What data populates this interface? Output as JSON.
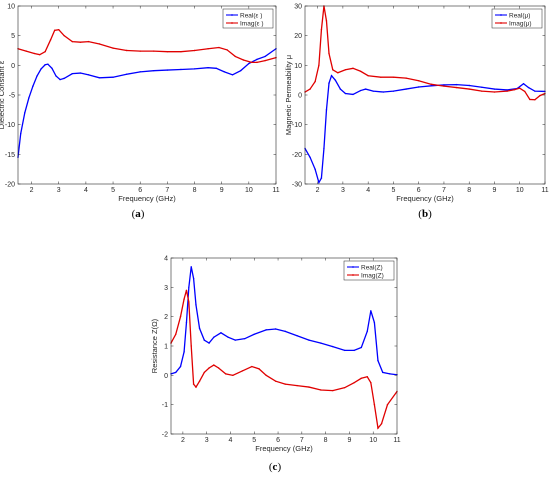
{
  "colors": {
    "real": "#0000ff",
    "imag": "#e00000"
  },
  "chart_data": [
    {
      "type": "line",
      "panel_label": "a",
      "xlabel": "Frequency (GHz)",
      "ylabel": "Dielectric Constant ε",
      "xlim": [
        1.5,
        11
      ],
      "ylim": [
        -20,
        10
      ],
      "xticks": [
        2,
        3,
        4,
        5,
        6,
        7,
        8,
        9,
        10,
        11
      ],
      "yticks": [
        -20,
        -15,
        -10,
        -5,
        0,
        5,
        10
      ],
      "grid": false,
      "legend": "top-right",
      "series": [
        {
          "name": "Real(ε )",
          "color": "#0000ff",
          "points": [
            [
              1.5,
              -15.5
            ],
            [
              1.6,
              -11.5
            ],
            [
              1.75,
              -8
            ],
            [
              1.9,
              -5.5
            ],
            [
              2.05,
              -3.5
            ],
            [
              2.2,
              -1.8
            ],
            [
              2.35,
              -0.6
            ],
            [
              2.5,
              0.1
            ],
            [
              2.6,
              0.2
            ],
            [
              2.75,
              -0.5
            ],
            [
              2.9,
              -1.8
            ],
            [
              3.05,
              -2.4
            ],
            [
              3.2,
              -2.2
            ],
            [
              3.5,
              -1.4
            ],
            [
              3.8,
              -1.3
            ],
            [
              4.1,
              -1.6
            ],
            [
              4.5,
              -2.1
            ],
            [
              5.0,
              -2.0
            ],
            [
              5.5,
              -1.5
            ],
            [
              6.0,
              -1.1
            ],
            [
              6.5,
              -0.9
            ],
            [
              7.0,
              -0.8
            ],
            [
              7.5,
              -0.7
            ],
            [
              8.0,
              -0.6
            ],
            [
              8.5,
              -0.4
            ],
            [
              8.8,
              -0.5
            ],
            [
              9.1,
              -1.1
            ],
            [
              9.4,
              -1.6
            ],
            [
              9.7,
              -0.9
            ],
            [
              10.0,
              0.3
            ],
            [
              10.3,
              1.0
            ],
            [
              10.6,
              1.5
            ],
            [
              11.0,
              2.8
            ]
          ]
        },
        {
          "name": "Imag(ε )",
          "color": "#e00000",
          "points": [
            [
              1.5,
              2.8
            ],
            [
              1.8,
              2.4
            ],
            [
              2.1,
              2.0
            ],
            [
              2.3,
              1.8
            ],
            [
              2.5,
              2.3
            ],
            [
              2.7,
              4.3
            ],
            [
              2.85,
              5.9
            ],
            [
              3.0,
              6.0
            ],
            [
              3.2,
              5.0
            ],
            [
              3.5,
              4.0
            ],
            [
              3.8,
              3.9
            ],
            [
              4.1,
              4.0
            ],
            [
              4.5,
              3.6
            ],
            [
              5.0,
              2.9
            ],
            [
              5.5,
              2.5
            ],
            [
              6.0,
              2.4
            ],
            [
              6.5,
              2.4
            ],
            [
              7.0,
              2.3
            ],
            [
              7.5,
              2.3
            ],
            [
              8.0,
              2.5
            ],
            [
              8.5,
              2.8
            ],
            [
              8.9,
              3.0
            ],
            [
              9.2,
              2.6
            ],
            [
              9.5,
              1.5
            ],
            [
              9.8,
              0.9
            ],
            [
              10.1,
              0.5
            ],
            [
              10.3,
              0.5
            ],
            [
              10.6,
              0.8
            ],
            [
              11.0,
              1.3
            ]
          ]
        }
      ]
    },
    {
      "type": "line",
      "panel_label": "b",
      "xlabel": "Frequency (GHz)",
      "ylabel": "Magnetic Permeability μ",
      "xlim": [
        1.5,
        11
      ],
      "ylim": [
        -30,
        30
      ],
      "xticks": [
        2,
        3,
        4,
        5,
        6,
        7,
        8,
        9,
        10,
        11
      ],
      "yticks": [
        -30,
        -20,
        -10,
        0,
        10,
        20,
        30
      ],
      "grid": false,
      "legend": "top-right",
      "series": [
        {
          "name": "Real(μ)",
          "color": "#0000ff",
          "points": [
            [
              1.5,
              -18
            ],
            [
              1.7,
              -21
            ],
            [
              1.9,
              -25
            ],
            [
              2.05,
              -29.5
            ],
            [
              2.15,
              -28
            ],
            [
              2.25,
              -18
            ],
            [
              2.35,
              -5
            ],
            [
              2.45,
              4
            ],
            [
              2.55,
              6.5
            ],
            [
              2.7,
              5
            ],
            [
              2.9,
              2
            ],
            [
              3.1,
              0.5
            ],
            [
              3.4,
              0.2
            ],
            [
              3.7,
              1.5
            ],
            [
              3.9,
              2.0
            ],
            [
              4.2,
              1.3
            ],
            [
              4.6,
              1.0
            ],
            [
              5.0,
              1.3
            ],
            [
              5.5,
              2.0
            ],
            [
              6.0,
              2.7
            ],
            [
              6.5,
              3.1
            ],
            [
              7.0,
              3.4
            ],
            [
              7.5,
              3.5
            ],
            [
              8.0,
              3.2
            ],
            [
              8.5,
              2.6
            ],
            [
              9.0,
              2.0
            ],
            [
              9.5,
              1.7
            ],
            [
              9.9,
              2.2
            ],
            [
              10.15,
              3.8
            ],
            [
              10.35,
              2.5
            ],
            [
              10.6,
              1.3
            ],
            [
              11.0,
              1.2
            ]
          ]
        },
        {
          "name": "Imag(μ)",
          "color": "#e00000",
          "points": [
            [
              1.5,
              1
            ],
            [
              1.7,
              2
            ],
            [
              1.9,
              4.5
            ],
            [
              2.05,
              10
            ],
            [
              2.15,
              22
            ],
            [
              2.25,
              30
            ],
            [
              2.35,
              25
            ],
            [
              2.45,
              14
            ],
            [
              2.6,
              8.5
            ],
            [
              2.8,
              7.5
            ],
            [
              3.1,
              8.5
            ],
            [
              3.4,
              9
            ],
            [
              3.7,
              8
            ],
            [
              4.0,
              6.5
            ],
            [
              4.5,
              6
            ],
            [
              5.0,
              6
            ],
            [
              5.5,
              5.7
            ],
            [
              6.0,
              4.8
            ],
            [
              6.5,
              3.6
            ],
            [
              7.0,
              3.0
            ],
            [
              7.5,
              2.5
            ],
            [
              8.0,
              2.0
            ],
            [
              8.5,
              1.3
            ],
            [
              9.0,
              1.0
            ],
            [
              9.5,
              1.3
            ],
            [
              9.8,
              1.8
            ],
            [
              10.0,
              2.3
            ],
            [
              10.2,
              1.2
            ],
            [
              10.4,
              -1.5
            ],
            [
              10.6,
              -1.6
            ],
            [
              10.8,
              -0.2
            ],
            [
              11.0,
              0.5
            ]
          ]
        }
      ]
    },
    {
      "type": "line",
      "panel_label": "c",
      "xlabel": "Frequency (GHz)",
      "ylabel": "Resistance Z(Ω)",
      "xlim": [
        1.5,
        11
      ],
      "ylim": [
        -2,
        4
      ],
      "xticks": [
        2,
        3,
        4,
        5,
        6,
        7,
        8,
        9,
        10,
        11
      ],
      "yticks": [
        -2,
        -1,
        0,
        1,
        2,
        3,
        4
      ],
      "grid": false,
      "legend": "top-right",
      "series": [
        {
          "name": "Real(Z)",
          "color": "#0000ff",
          "points": [
            [
              1.5,
              0.05
            ],
            [
              1.7,
              0.1
            ],
            [
              1.9,
              0.3
            ],
            [
              2.05,
              0.8
            ],
            [
              2.15,
              1.8
            ],
            [
              2.25,
              3.0
            ],
            [
              2.35,
              3.7
            ],
            [
              2.45,
              3.3
            ],
            [
              2.55,
              2.4
            ],
            [
              2.7,
              1.6
            ],
            [
              2.9,
              1.2
            ],
            [
              3.1,
              1.1
            ],
            [
              3.3,
              1.3
            ],
            [
              3.6,
              1.45
            ],
            [
              3.9,
              1.3
            ],
            [
              4.2,
              1.2
            ],
            [
              4.6,
              1.25
            ],
            [
              5.0,
              1.4
            ],
            [
              5.5,
              1.55
            ],
            [
              5.9,
              1.58
            ],
            [
              6.3,
              1.5
            ],
            [
              6.8,
              1.35
            ],
            [
              7.3,
              1.2
            ],
            [
              7.8,
              1.1
            ],
            [
              8.3,
              0.98
            ],
            [
              8.8,
              0.85
            ],
            [
              9.2,
              0.85
            ],
            [
              9.5,
              0.95
            ],
            [
              9.75,
              1.5
            ],
            [
              9.9,
              2.2
            ],
            [
              10.05,
              1.8
            ],
            [
              10.2,
              0.5
            ],
            [
              10.4,
              0.1
            ],
            [
              10.7,
              0.05
            ],
            [
              11.0,
              0.02
            ]
          ]
        },
        {
          "name": "Imag(Z)",
          "color": "#e00000",
          "points": [
            [
              1.5,
              1.1
            ],
            [
              1.7,
              1.4
            ],
            [
              1.9,
              2.0
            ],
            [
              2.05,
              2.6
            ],
            [
              2.15,
              2.9
            ],
            [
              2.25,
              2.5
            ],
            [
              2.35,
              1.0
            ],
            [
              2.45,
              -0.3
            ],
            [
              2.55,
              -0.4
            ],
            [
              2.7,
              -0.2
            ],
            [
              2.9,
              0.1
            ],
            [
              3.1,
              0.25
            ],
            [
              3.3,
              0.35
            ],
            [
              3.5,
              0.25
            ],
            [
              3.8,
              0.05
            ],
            [
              4.1,
              0.0
            ],
            [
              4.5,
              0.15
            ],
            [
              4.9,
              0.3
            ],
            [
              5.2,
              0.22
            ],
            [
              5.5,
              0.0
            ],
            [
              5.9,
              -0.2
            ],
            [
              6.3,
              -0.3
            ],
            [
              6.8,
              -0.35
            ],
            [
              7.3,
              -0.4
            ],
            [
              7.8,
              -0.5
            ],
            [
              8.3,
              -0.52
            ],
            [
              8.8,
              -0.42
            ],
            [
              9.2,
              -0.25
            ],
            [
              9.5,
              -0.1
            ],
            [
              9.75,
              -0.05
            ],
            [
              9.9,
              -0.25
            ],
            [
              10.05,
              -1.0
            ],
            [
              10.2,
              -1.8
            ],
            [
              10.35,
              -1.65
            ],
            [
              10.6,
              -1.0
            ],
            [
              11.0,
              -0.55
            ]
          ]
        }
      ]
    }
  ]
}
